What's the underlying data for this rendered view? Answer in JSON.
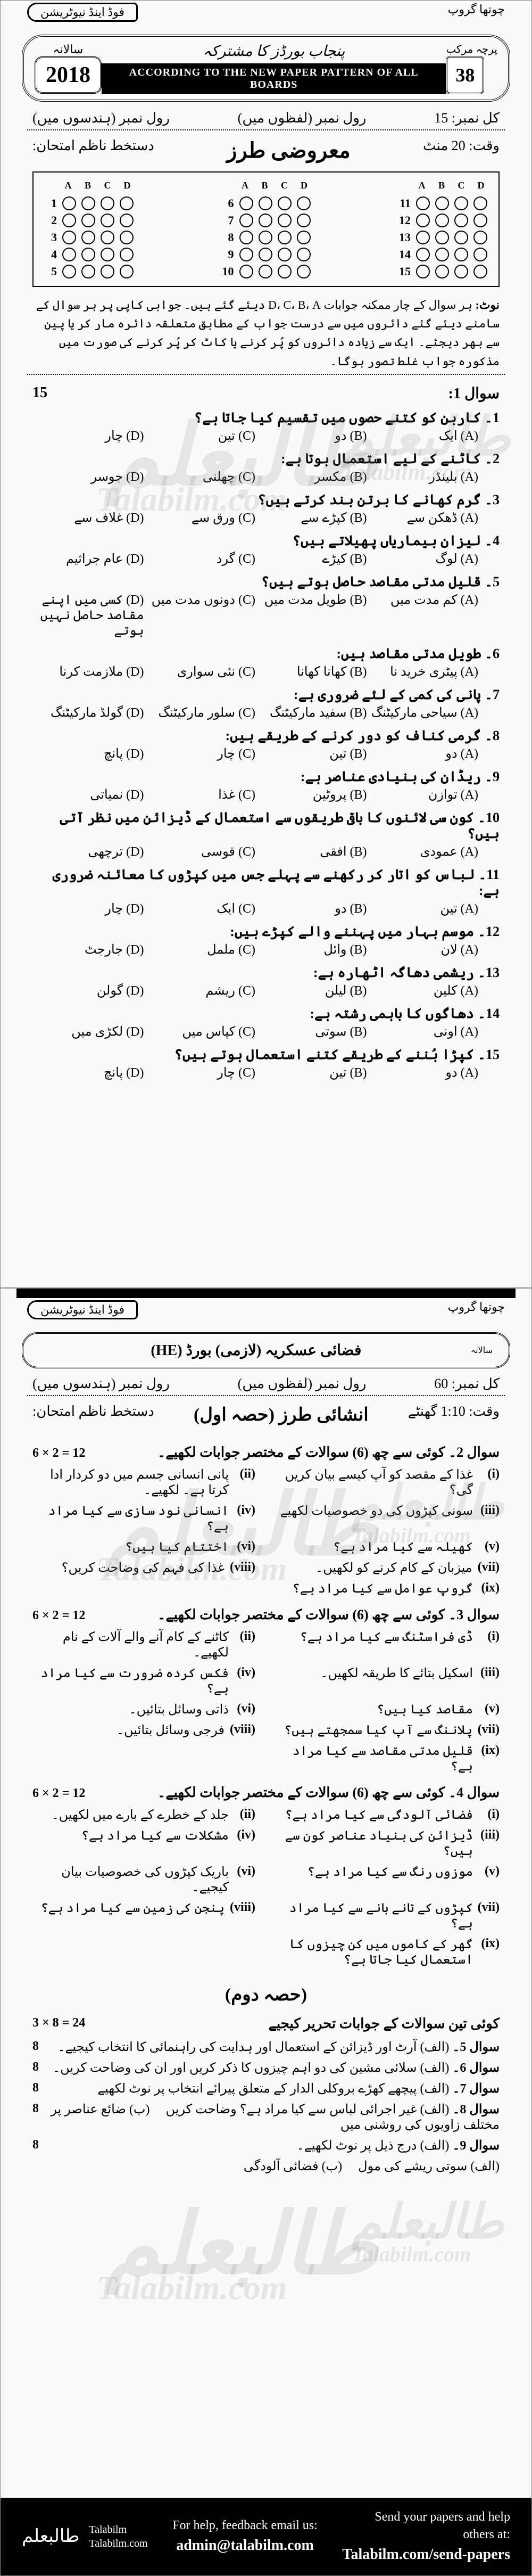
{
  "top_strip": {
    "left_chip": "فوڈ اینڈ نیوٹریشن",
    "right_chip": "چوتھا گروپ"
  },
  "header": {
    "year": "2018",
    "year_label": "سالانہ",
    "board_title_line1": "پنجاب بورڈز کا مشترکہ",
    "pattern_band": "ACCORDING TO THE NEW PAPER PATTERN OF ALL BOARDS",
    "badge_num": "38",
    "badge_side": "پرچہ مرکب"
  },
  "info": {
    "total_marks_label": "کل نمبر:",
    "total_marks": "15",
    "roll_words": "رول نمبر (لفظوں میں)",
    "roll_digits": "رول نمبر (ہندسوں میں)",
    "sig_label": "دستخط ناظم امتحان:",
    "time_label": "وقت:",
    "time_value": "20 منٹ"
  },
  "section_obj_title": "معروضی طرز",
  "omr": {
    "cols": [
      "A",
      "B",
      "C",
      "D"
    ],
    "groups": [
      [
        1,
        2,
        3,
        4,
        5
      ],
      [
        6,
        7,
        8,
        9,
        10
      ],
      [
        11,
        12,
        13,
        14,
        15
      ]
    ]
  },
  "instructions_note": "نوٹ:",
  "instructions_text": "ہر سوال کے چار ممکنہ جوابات D، C، B، A دیئے گئے ہیں۔ جوابی کاپی پر ہر سوال کے سامنے دیئے گئے دائروں میں سے درست جواب کے مطابق متعلقہ دائرہ مار کر یا پین سے بھر دیجئے۔ ایک سے زیادہ دائروں کو پُر کرنے یا کاٹ کر پُر کرنے کی صورت میں مذکورہ جواب غلط تصور ہوگا۔",
  "q1_label": "سوال 1:",
  "q1_marks": "15",
  "mcqs": [
    {
      "n": "1۔",
      "stem": "کاربن کو کتنے حصوں میں تقسیم کیا جاتا ہے؟",
      "opts": [
        "(A) ایک",
        "(B) دو",
        "(C) تین",
        "(D) چار"
      ]
    },
    {
      "n": "2۔",
      "stem": "کاٹنے کے لیے استعمال ہوتا ہے:",
      "opts": [
        "(A) بلینڈر",
        "(B) مکسر",
        "(C) چھلنی",
        "(D) جوسر"
      ]
    },
    {
      "n": "3۔",
      "stem": "گرم کھانے کا برتن بند کرتے ہیں؟",
      "opts": [
        "(A) ڈھکن سے",
        "(B) کپڑے سے",
        "(C) ورق سے",
        "(D) غلاف سے"
      ]
    },
    {
      "n": "4۔",
      "stem": "لیزان بیماریاں پھیلاتے ہیں؟",
      "opts": [
        "(A) لوگ",
        "(B) کیڑے",
        "(C) گرد",
        "(D) عام جراثیم"
      ]
    },
    {
      "n": "5۔",
      "stem": "قلیل مدتی مقاصد حاصل ہوتے ہیں؟",
      "opts": [
        "(A) کم مدت میں",
        "(B) طویل مدت میں",
        "(C) دونوں مدت میں",
        "(D) کسی میں اپنے مقاصد حاصل نہیں ہوتے"
      ]
    },
    {
      "n": "6۔",
      "stem": "طویل مدتی مقاصد ہیں:",
      "opts": [
        "(A) پیٹری خرید نا",
        "(B) کھانا کھانا",
        "(C) نئی سواری",
        "(D) ملازمت کرنا"
      ]
    },
    {
      "n": "7۔",
      "stem": "پانی کی کمی کے لئے ضروری ہے:",
      "opts": [
        "(A) سیاحی مارکیٹنگ",
        "(B) سفید مارکیٹنگ",
        "(C) سلور مارکیٹنگ",
        "(D) گولڈ مارکیٹنگ"
      ]
    },
    {
      "n": "8۔",
      "stem": "گرمی کناف کو دور کرنے کے طریقے ہیں:",
      "opts": [
        "(A) دو",
        "(B) تین",
        "(C) چار",
        "(D) پانچ"
      ]
    },
    {
      "n": "9۔",
      "stem": "ریڈان کی بنیادی عناصر ہے:",
      "opts": [
        "(A) توازن",
        "(B) پروٹین",
        "(C) غذا",
        "(D) نمیاتی"
      ]
    },
    {
      "n": "10۔",
      "stem": "کون سی لائنوں کا باقی طریقوں سے استعمال کے ڈیزائن میں نظر آتی ہیں؟",
      "opts": [
        "(A) عمودی",
        "(B) افقی",
        "(C) قوسی",
        "(D) ترچھی"
      ]
    },
    {
      "n": "11۔",
      "stem": "لباس کو اتار کر رکھنے سے پہلے جس میں کپڑوں کا معائنہ ضروری ہے:",
      "opts": [
        "(A) تین",
        "(B) دو",
        "(C) ایک",
        "(D) چار"
      ]
    },
    {
      "n": "12۔",
      "stem": "موسم بہار میں پہننے والے کپڑے ہیں:",
      "opts": [
        "(A) لان",
        "(B) وائل",
        "(C) ململ",
        "(D) جارجٹ"
      ]
    },
    {
      "n": "13۔",
      "stem": "ریشمی دھاگہ اٹھارہ ہے:",
      "opts": [
        "(A) کلین",
        "(B) لیلن",
        "(C) ریشم",
        "(D) گولن"
      ]
    },
    {
      "n": "14۔",
      "stem": "دھاگوں کا باہمی رشتہ ہے:",
      "opts": [
        "(A) اونی",
        "(B) سوتی",
        "(C) کپاس میں",
        "(D) لکڑی میں"
      ]
    },
    {
      "n": "15۔",
      "stem": "کپڑا بُننے کے طریقے کتنے استعمال ہوتے ہیں؟",
      "opts": [
        "(A) دو",
        "(B) تین",
        "(C) چار",
        "(D) پانچ"
      ]
    }
  ],
  "top_strip2": {
    "left_chip": "فوڈ اینڈ نیوٹریشن",
    "right_chip": "چوتھا گروپ"
  },
  "sub_header": {
    "subject": "فضائی عسکریہ (لازمی) بورڈ (HE)",
    "side": "سالانہ"
  },
  "info2": {
    "total_marks_label": "کل نمبر:",
    "total_marks": "60",
    "roll_words": "رول نمبر (لفظوں میں)",
    "roll_digits": "رول نمبر (ہندسوں میں)",
    "sig_label": "دستخط ناظم امتحان:",
    "time_label": "وقت:",
    "time_value": "1:10 گھنٹے"
  },
  "subj_title": "انشائی طرز (حصہ اول)",
  "sq_sets": [
    {
      "heading": "سوال 2۔ کوئی سے چھ (6) سوالات کے مختصر جوابات لکھیے۔",
      "scheme": "6 × 2 = 12",
      "items": [
        {
          "n": "(i)",
          "t": "غذا کے مقصد کو آپ کیسے بیان کریں گی؟"
        },
        {
          "n": "(ii)",
          "t": "پانی انسانی جسم میں دو کردار ادا کرتا ہے۔ لکھیے۔"
        },
        {
          "n": "(iii)",
          "t": "سونی کپڑوں کی دو خصوصیات لکھیے"
        },
        {
          "n": "(iv)",
          "t": "انسانی نود سازی سے کیا مراد ہے؟"
        },
        {
          "n": "(v)",
          "t": "کھیلہ سے کیا مراد ہے؟"
        },
        {
          "n": "(vi)",
          "t": "اختتام کیا ہیں؟"
        },
        {
          "n": "(vii)",
          "t": "میزبان کے کام کرنے کو لکھیں۔"
        },
        {
          "n": "(viii)",
          "t": "غذا کی فہم کی وضاحت کریں؟"
        },
        {
          "n": "(ix)",
          "t": "گروپ عوامل سے کیا مراد ہے؟"
        }
      ]
    },
    {
      "heading": "سوال 3۔ کوئی سے چھ (6) سوالات کے مختصر جوابات لکھیے۔",
      "scheme": "6 × 2 = 12",
      "items": [
        {
          "n": "(i)",
          "t": "ڈی فراسٹنگ سے کیا مراد ہے؟"
        },
        {
          "n": "(ii)",
          "t": "کاٹنے کے کام آنے والے آلات کے نام لکھیے۔"
        },
        {
          "n": "(iii)",
          "t": "اسکیل بتائے کا طریقہ لکھیں۔"
        },
        {
          "n": "(iv)",
          "t": "فکس کردہ ضرورت سے کیا مراد ہے؟"
        },
        {
          "n": "(v)",
          "t": "مقاصد کیا ہیں؟"
        },
        {
          "n": "(vi)",
          "t": "ذاتی وسائل بتائیں۔"
        },
        {
          "n": "(vii)",
          "t": "پلاننگ سے آپ کیا سمجھتے ہیں؟"
        },
        {
          "n": "(viii)",
          "t": "فرجی وسائل بتائیں۔"
        },
        {
          "n": "(ix)",
          "t": "قلیل مدتی مقاصد سے کیا مراد ہے؟"
        }
      ]
    },
    {
      "heading": "سوال 4۔ کوئی سے چھ (6) سوالات کے مختصر جوابات لکھیے۔",
      "scheme": "6 × 2 = 12",
      "items": [
        {
          "n": "(i)",
          "t": "فضائی آلودگی سے کیا مراد ہے؟"
        },
        {
          "n": "(ii)",
          "t": "جلد کے خطرے کے بارے میں لکھیں۔"
        },
        {
          "n": "(iii)",
          "t": "ڈیزائن کی بنیاد عناصر کون سے ہیں؟"
        },
        {
          "n": "(iv)",
          "t": "مشکلات سے کیا مراد ہے؟"
        },
        {
          "n": "(v)",
          "t": "موزوں رنگ سے کیا مراد ہے؟"
        },
        {
          "n": "(vi)",
          "t": "باریک کپڑوں کی خصوصیات بیان کیجیے۔"
        },
        {
          "n": "(vii)",
          "t": "کپڑوں کے تانے بانے سے کیا مراد ہے؟"
        },
        {
          "n": "(viii)",
          "t": "پنجن کی زمین سے کیا مراد ہے؟"
        },
        {
          "n": "(ix)",
          "t": "گھر کے کاموں میں کن چیزوں کا استعمال کیا جاتا ہے؟"
        }
      ]
    }
  ],
  "part2_title": "(حصہ دوم)",
  "long_section": {
    "heading": "کوئی تین سوالات کے جوابات تحریر کیجیے",
    "scheme": "3 × 8 = 24",
    "qs": [
      {
        "n": "سوال 5۔",
        "a": "(الف) آرٹ اور ڈیزائن کے استعمال اور ہدایت کی راہنمائی کا انتخاب کیجیے۔",
        "b": "",
        "ma": "8"
      },
      {
        "n": "سوال 6۔",
        "a": "(الف) سلائی مشین کی دو اہم چیزوں کا ذکر کریں اور ان کی وضاحت کریں۔",
        "b": "",
        "ma": "8"
      },
      {
        "n": "سوال 7۔",
        "a": "(الف) پیچھے کھڑے بروکلی الدار کے متعلق پیرائے انتخاب پر نوٹ لکھیے",
        "b": "",
        "ma": "8"
      },
      {
        "n": "سوال 8۔",
        "a": "(الف) غیر اجرائی لباس سے کیا مراد ہے؟ وضاحت کریں",
        "b": "(ب) ضائع عناصر پر مختلف زاویوں کی روشنی میں",
        "ma": "8"
      },
      {
        "n": "سوال 9۔",
        "a": "(الف) درج ذیل پر نوٹ لکھیے۔",
        "b": "",
        "ma": "8"
      },
      {
        "n": "",
        "a": "(الف) سوتی ریشے کی مول",
        "b": "(ب) فضائی آلودگی",
        "ma": ""
      }
    ]
  },
  "footer": {
    "brand_urdu": "طالبعلم",
    "brand_en1": "Talabilm",
    "brand_en2": "Talabilm.com",
    "mid_line1": "For help, feedback email us:",
    "mid_email": "admin@talabilm.com",
    "right_line1": "Send your papers and help",
    "right_line2": "others at:",
    "right_url": "Talabilm.com/send-papers"
  },
  "watermarks": {
    "urdu": "طالبعلم",
    "en": "Talabilm.com"
  }
}
